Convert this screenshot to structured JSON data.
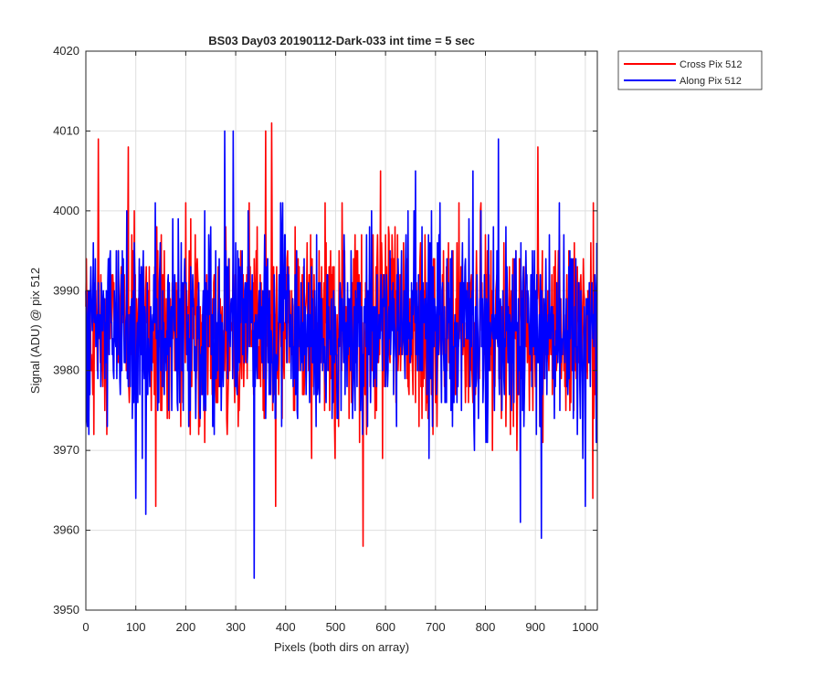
{
  "chart_data": {
    "type": "line",
    "title": "BS03 Day03 20190112-Dark-033 int time = 5 sec",
    "xlabel": "Pixels (both dirs on array)",
    "ylabel": "Signal (ADU) @ pix 512",
    "xlim": [
      0,
      1024
    ],
    "ylim": [
      3950,
      4020
    ],
    "xticks": [
      0,
      100,
      200,
      300,
      400,
      500,
      600,
      700,
      800,
      900,
      1000
    ],
    "yticks": [
      3950,
      3960,
      3970,
      3980,
      3990,
      4000,
      4010,
      4020
    ],
    "grid": true,
    "legend_position": "outside top-right",
    "noise_center": 3985,
    "noise_sigma": 6,
    "points_per_series": 1024,
    "series": [
      {
        "name": "Cross Pix 512",
        "color": "#ff0000",
        "notable_points": [
          {
            "x": 25,
            "y": 4009
          },
          {
            "x": 85,
            "y": 4008
          },
          {
            "x": 140,
            "y": 3963
          },
          {
            "x": 360,
            "y": 4010
          },
          {
            "x": 372,
            "y": 4011
          },
          {
            "x": 380,
            "y": 3963
          },
          {
            "x": 555,
            "y": 3958
          },
          {
            "x": 590,
            "y": 4005
          },
          {
            "x": 905,
            "y": 4008
          },
          {
            "x": 1015,
            "y": 3964
          }
        ]
      },
      {
        "name": "Along Pix 512",
        "color": "#0000ff",
        "notable_points": [
          {
            "x": 100,
            "y": 3964
          },
          {
            "x": 120,
            "y": 3962
          },
          {
            "x": 278,
            "y": 4010
          },
          {
            "x": 295,
            "y": 4010
          },
          {
            "x": 337,
            "y": 3954
          },
          {
            "x": 660,
            "y": 4005
          },
          {
            "x": 775,
            "y": 4005
          },
          {
            "x": 826,
            "y": 4009
          },
          {
            "x": 870,
            "y": 3961
          },
          {
            "x": 912,
            "y": 3959
          },
          {
            "x": 1000,
            "y": 3963
          }
        ]
      }
    ]
  }
}
